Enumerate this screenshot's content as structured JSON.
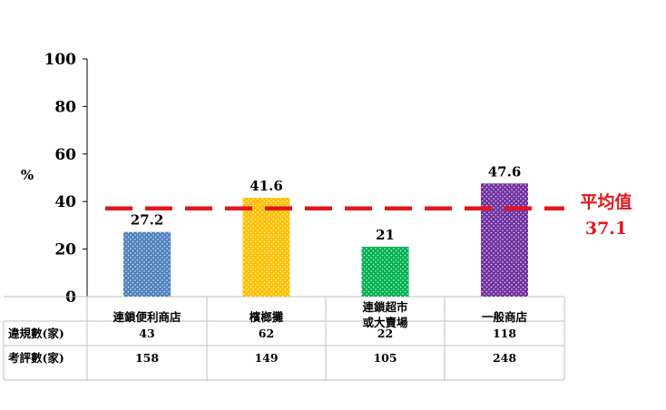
{
  "chart_data": {
    "type": "bar",
    "categories": [
      "連鎖便利商店",
      "檳榔攤",
      "連鎖超市\n或大賣場",
      "一般商店"
    ],
    "values": [
      27.2,
      41.6,
      21,
      47.6
    ],
    "value_labels": [
      "27.2",
      "41.6",
      "21",
      "47.6"
    ],
    "bar_colors": [
      "#4f81bd",
      "#ffc000",
      "#00b050",
      "#7030a0"
    ],
    "ylabel": "%",
    "ylim": [
      0,
      100
    ],
    "yticks": [
      "0",
      "20",
      "40",
      "60",
      "80",
      "100"
    ],
    "grid": false,
    "average": {
      "label": "平均值",
      "value": 37.1,
      "value_label": "37.1",
      "color": "#e3161b"
    },
    "table": {
      "rows": [
        {
          "label": "違規數(家)",
          "values": [
            "43",
            "62",
            "22",
            "118"
          ]
        },
        {
          "label": "考評數(家)",
          "values": [
            "158",
            "149",
            "105",
            "248"
          ]
        }
      ]
    }
  }
}
